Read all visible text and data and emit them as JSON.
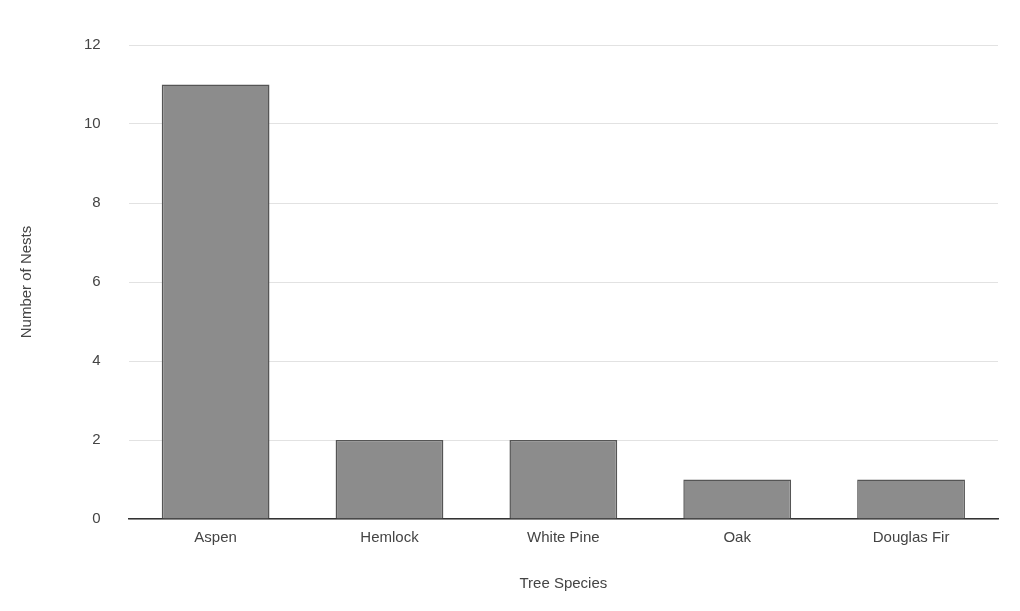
{
  "chart_data": {
    "type": "bar",
    "xlabel": "Tree Species",
    "ylabel": "Number of Nests",
    "categories": [
      "Aspen",
      "Hemlock",
      "White Pine",
      "Oak",
      "Douglas Fir"
    ],
    "values": [
      11,
      2,
      2,
      1,
      1
    ],
    "color": "#8c8c8c",
    "ylim": [
      0,
      12
    ],
    "yticks": [
      0,
      2,
      4,
      6,
      8,
      10,
      12
    ],
    "grid": "y",
    "legend": false
  }
}
